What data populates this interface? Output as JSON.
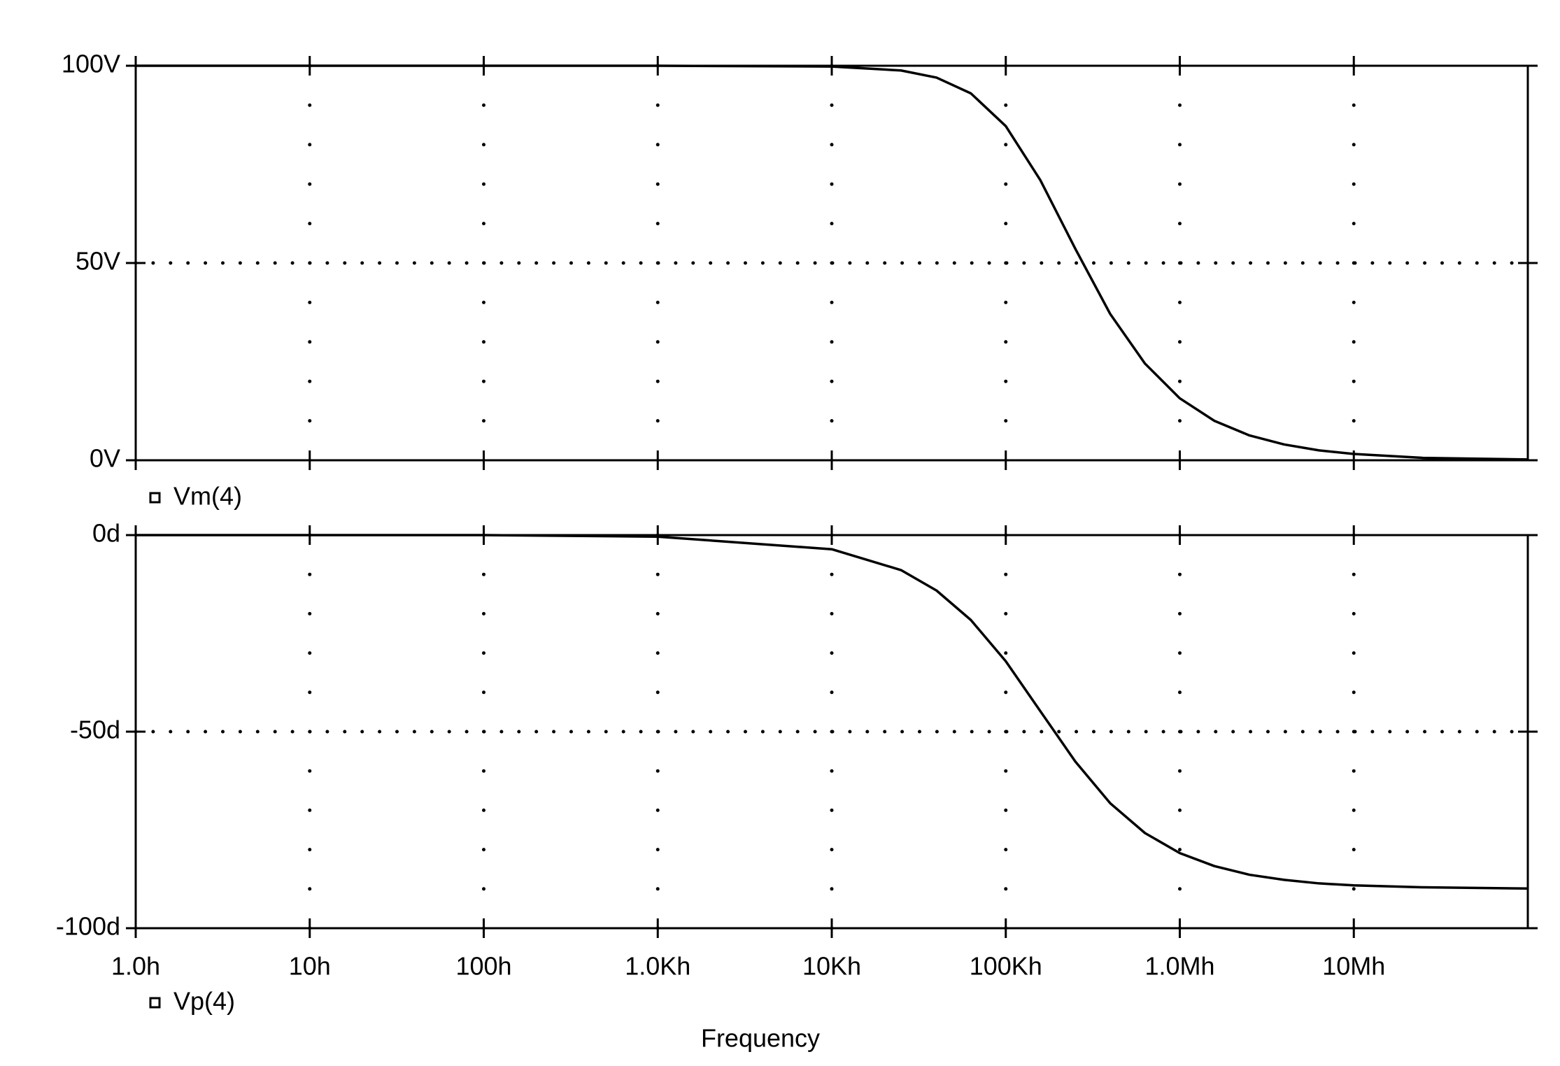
{
  "chart_data": [
    {
      "type": "line",
      "xscale": "log",
      "x": [
        1,
        10,
        100,
        1000,
        10000,
        25000,
        40000,
        63000,
        100000,
        158000,
        251000,
        398000,
        631000,
        1000000,
        1580000,
        2510000,
        3980000,
        6310000,
        10000000,
        25000000,
        100000000
      ],
      "series": [
        {
          "name": "Vm(4)",
          "color": "#000000",
          "values": [
            100,
            100,
            100,
            100,
            99.8,
            98.8,
            97.0,
            93.0,
            84.7,
            71.0,
            53.6,
            37.1,
            24.5,
            15.7,
            10.0,
            6.3,
            4.0,
            2.5,
            1.6,
            0.6,
            0.2
          ]
        }
      ],
      "xlim": [
        1,
        100000000
      ],
      "xticks": [
        1,
        10,
        100,
        1000,
        10000,
        100000,
        1000000,
        10000000
      ],
      "ylim": [
        0,
        100
      ],
      "yticks": [
        {
          "value": 0,
          "label": "0V"
        },
        {
          "value": 50,
          "label": "50V"
        },
        {
          "value": 100,
          "label": "100V"
        }
      ],
      "grid": true
    },
    {
      "type": "line",
      "xscale": "log",
      "xlabel": "Frequency",
      "x": [
        1,
        10,
        100,
        1000,
        10000,
        25000,
        40000,
        63000,
        100000,
        158000,
        251000,
        398000,
        631000,
        1000000,
        1580000,
        2510000,
        3980000,
        6310000,
        10000000,
        25000000,
        100000000
      ],
      "series": [
        {
          "name": "Vp(4)",
          "color": "#000000",
          "values": [
            0,
            0,
            0,
            -0.4,
            -3.6,
            -8.9,
            -14.1,
            -21.6,
            -32.1,
            -44.8,
            -57.6,
            -68.2,
            -75.8,
            -80.9,
            -84.2,
            -86.4,
            -87.7,
            -88.6,
            -89.1,
            -89.6,
            -89.9
          ]
        }
      ],
      "xlim": [
        1,
        100000000
      ],
      "xticks": [
        {
          "value": 1,
          "label": "1.0h"
        },
        {
          "value": 10,
          "label": "10h"
        },
        {
          "value": 100,
          "label": "100h"
        },
        {
          "value": 1000,
          "label": "1.0Kh"
        },
        {
          "value": 10000,
          "label": "10Kh"
        },
        {
          "value": 100000,
          "label": "100Kh"
        },
        {
          "value": 1000000,
          "label": "1.0Mh"
        },
        {
          "value": 10000000,
          "label": "10Mh"
        }
      ],
      "ylim": [
        -100,
        0
      ],
      "yticks": [
        {
          "value": -100,
          "label": "-100d"
        },
        {
          "value": -50,
          "label": "-50d"
        },
        {
          "value": 0,
          "label": "0d"
        }
      ],
      "grid": true
    }
  ]
}
